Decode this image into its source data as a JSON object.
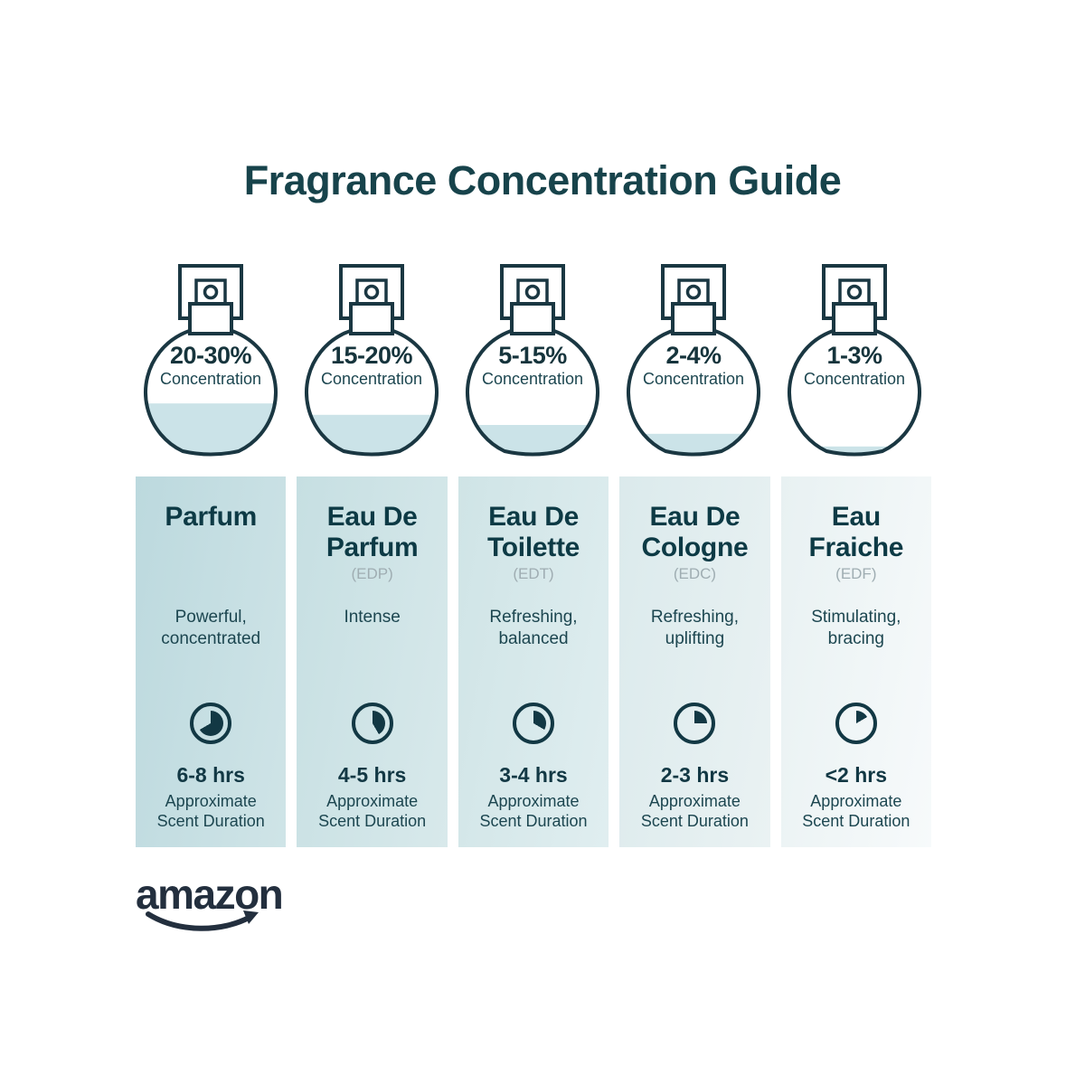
{
  "title": "Fragrance Concentration Guide",
  "bottles": [
    {
      "range": "20-30%",
      "label": "Concentration",
      "fill_percent": 42
    },
    {
      "range": "15-20%",
      "label": "Concentration",
      "fill_percent": 33
    },
    {
      "range": "5-15%",
      "label": "Concentration",
      "fill_percent": 25
    },
    {
      "range": "2-4%",
      "label": "Concentration",
      "fill_percent": 18
    },
    {
      "range": "1-3%",
      "label": "Concentration",
      "fill_percent": 8
    }
  ],
  "columns": [
    {
      "name": "Parfum",
      "abbr": "",
      "description": "Powerful,\nconcentrated",
      "duration": "6-8 hrs",
      "duration_note": "Approximate\nScent Duration",
      "clock_degrees": 240
    },
    {
      "name": "Eau De\nParfum",
      "abbr": "(EDP)",
      "description": "Intense",
      "duration": "4-5 hrs",
      "duration_note": "Approximate\nScent Duration",
      "clock_degrees": 150
    },
    {
      "name": "Eau De\nToilette",
      "abbr": "(EDT)",
      "description": "Refreshing,\nbalanced",
      "duration": "3-4 hrs",
      "duration_note": "Approximate\nScent Duration",
      "clock_degrees": 120
    },
    {
      "name": "Eau De\nCologne",
      "abbr": "(EDC)",
      "description": "Refreshing,\nuplifting",
      "duration": "2-3 hrs",
      "duration_note": "Approximate\nScent Duration",
      "clock_degrees": 90
    },
    {
      "name": "Eau\nFraiche",
      "abbr": "(EDF)",
      "description": "Stimulating,\nbracing",
      "duration": "<2 hrs",
      "duration_note": "Approximate\nScent Duration",
      "clock_degrees": 60
    }
  ],
  "brand": {
    "logo_text": "amazon"
  },
  "colors": {
    "title_text": "#17434b",
    "heading_text": "#0d3a45",
    "body_text": "#1c4650",
    "abbr_text": "#9fadb2",
    "bottle_outline": "#1a3742",
    "liquid_fill": "#cbe3e8",
    "clock": "#123844",
    "logo": "#232f3e"
  }
}
